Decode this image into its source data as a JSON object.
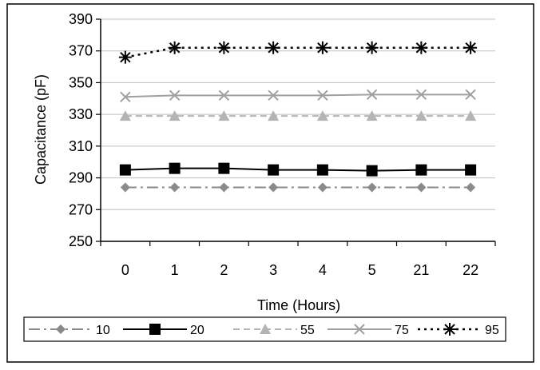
{
  "chart_data": {
    "type": "line",
    "xlabel": "Time (Hours)",
    "ylabel": "Capacitance (pF)",
    "categories": [
      "0",
      "1",
      "2",
      "3",
      "4",
      "5",
      "21",
      "22"
    ],
    "ylim": [
      250,
      390
    ],
    "yticks": [
      "250",
      "270",
      "290",
      "310",
      "330",
      "350",
      "370",
      "390"
    ],
    "grid": true,
    "legend_position": "bottom",
    "series": [
      {
        "name": "10",
        "values": [
          284,
          284,
          284,
          284,
          284,
          284,
          284,
          284
        ],
        "color": "#8a8a8a",
        "marker": "diamond",
        "dash": "dashdot"
      },
      {
        "name": "20",
        "values": [
          295,
          296,
          296,
          295,
          295,
          294.5,
          295,
          295
        ],
        "color": "#000000",
        "marker": "square",
        "dash": "solid"
      },
      {
        "name": "55",
        "values": [
          329,
          329,
          329,
          329,
          329,
          329,
          329,
          329
        ],
        "color": "#b4b4b4",
        "marker": "triangle",
        "dash": "dash"
      },
      {
        "name": "75",
        "values": [
          341,
          342,
          342,
          342,
          342,
          342.5,
          342.5,
          342.5
        ],
        "color": "#a0a0a0",
        "marker": "x",
        "dash": "solid"
      },
      {
        "name": "95",
        "values": [
          366,
          372,
          372,
          372,
          372,
          372,
          372,
          372
        ],
        "color": "#000000",
        "marker": "star",
        "dash": "dot"
      }
    ]
  }
}
